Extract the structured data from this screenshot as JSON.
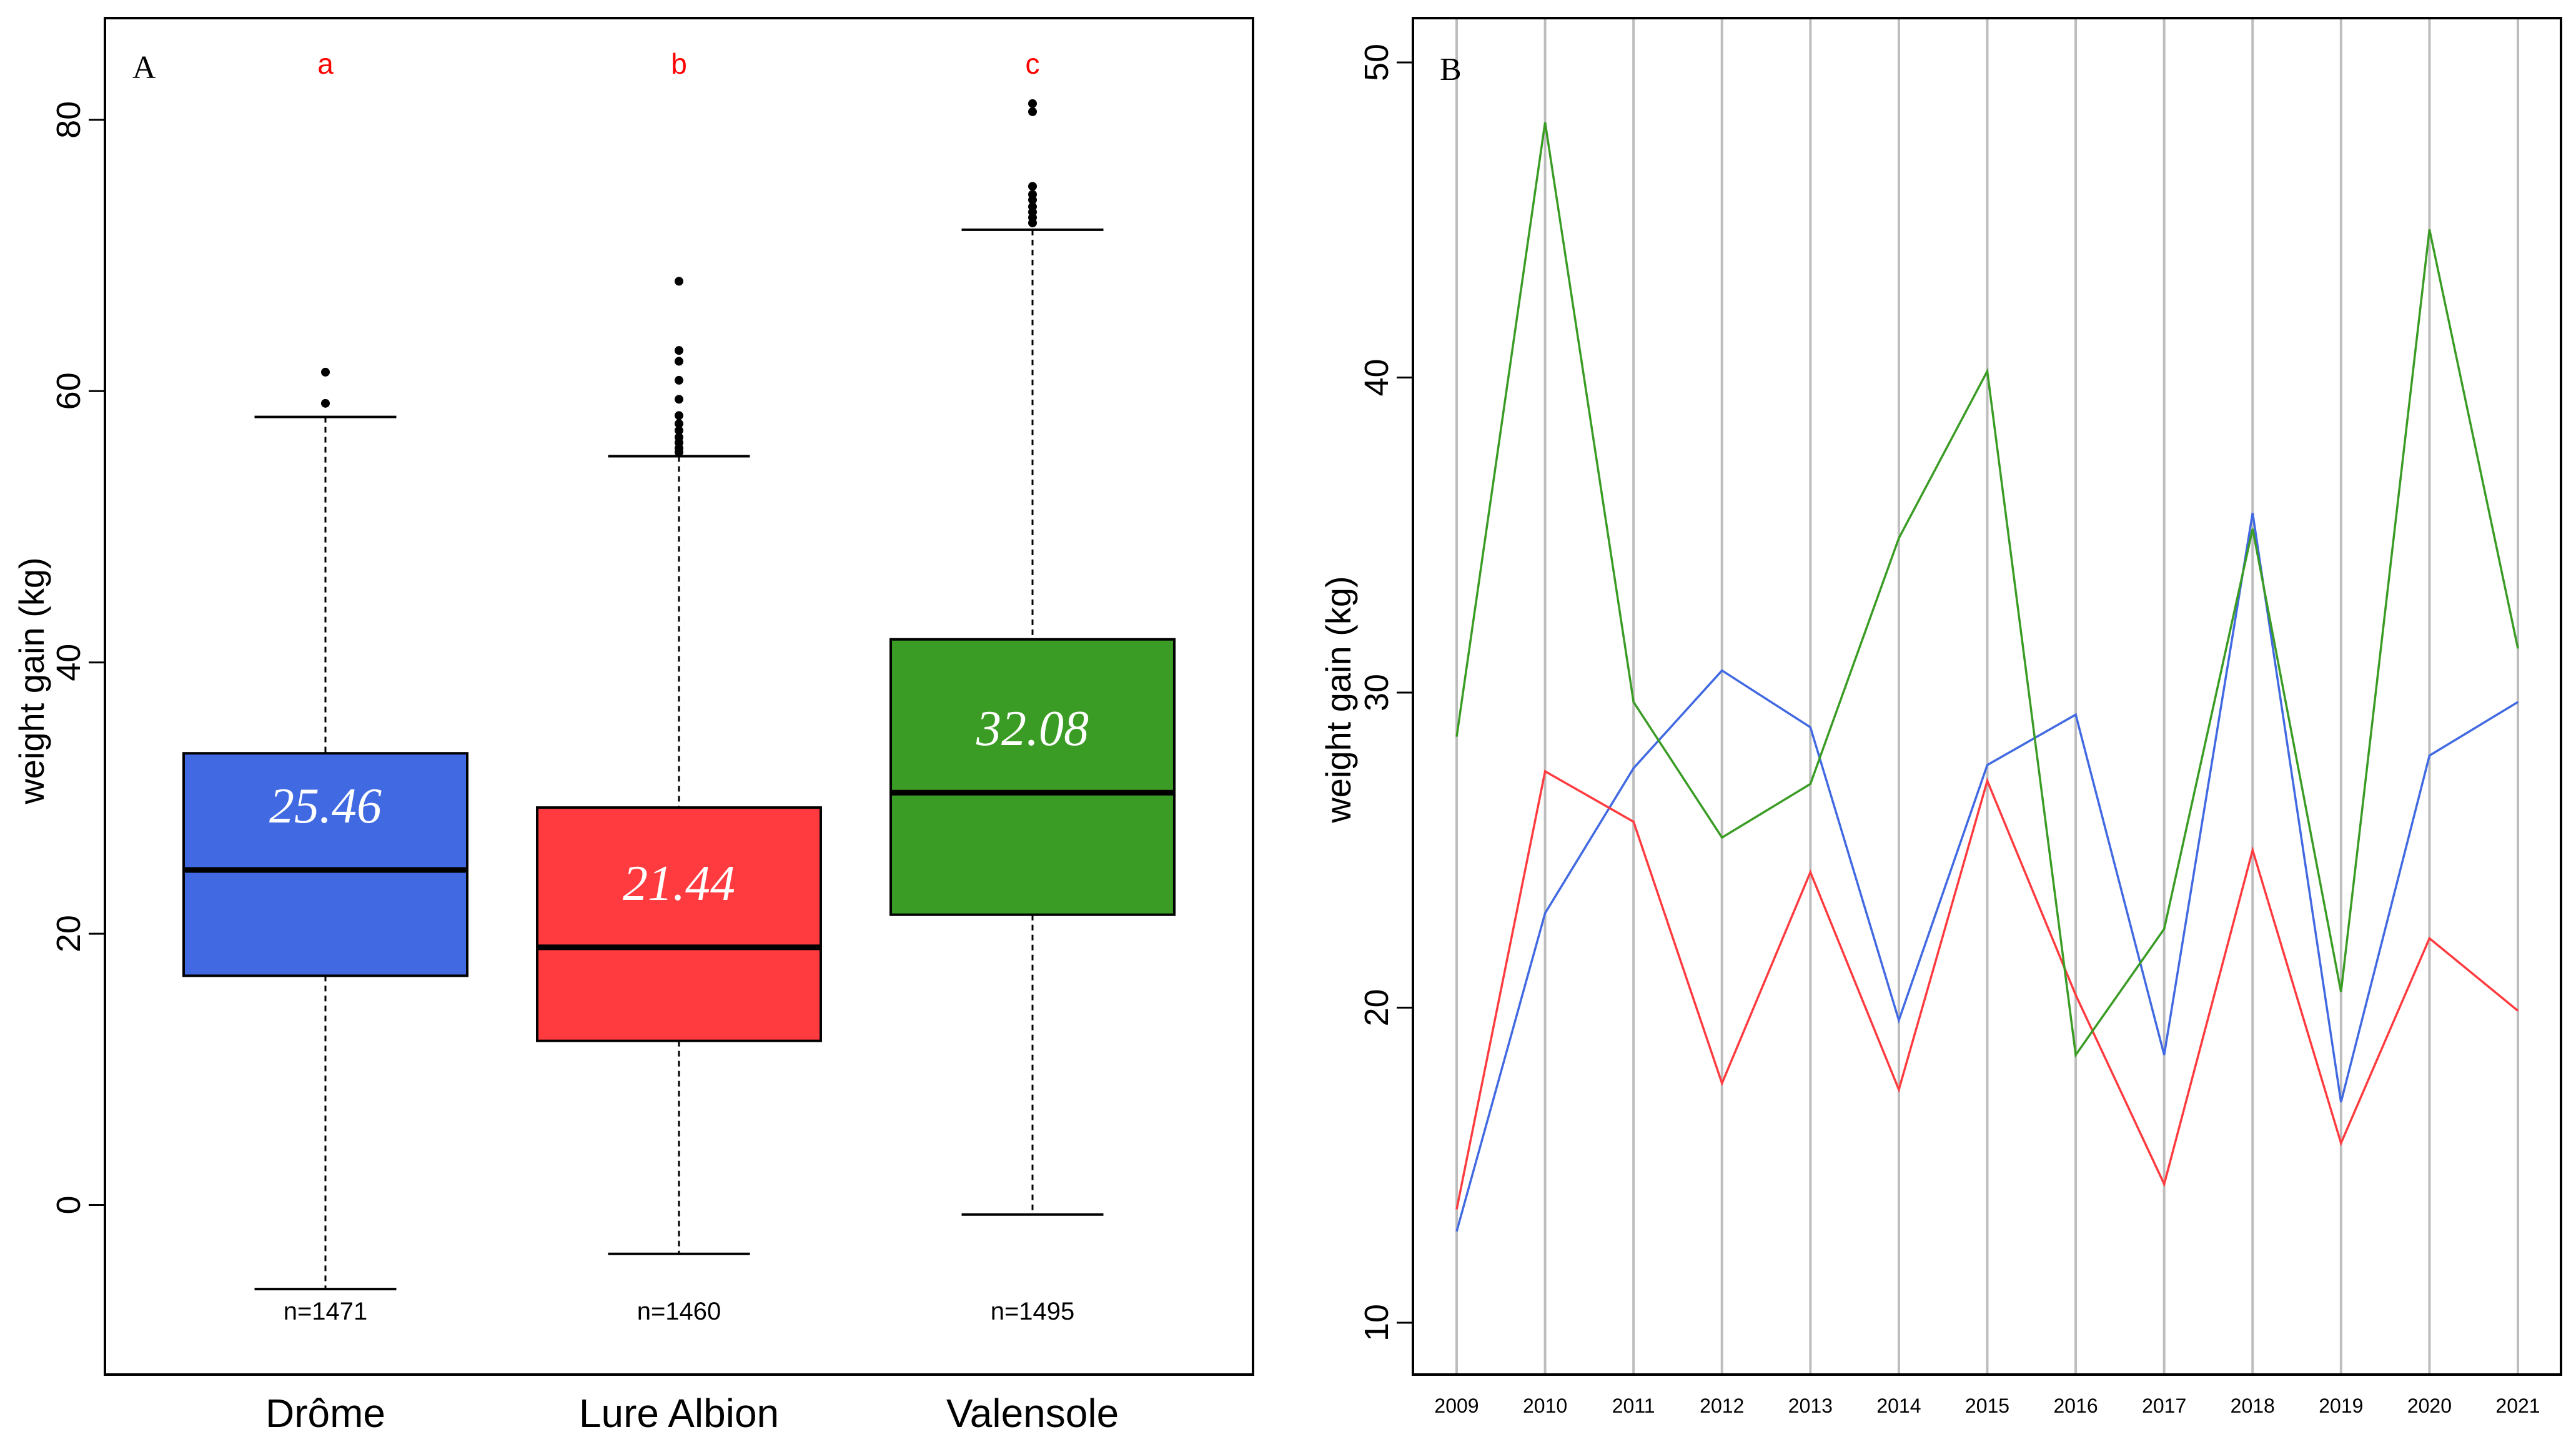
{
  "chart_data": [
    {
      "panel_label": "A",
      "type": "boxplot",
      "ylabel": "weight gain (kg)",
      "ylim": [
        -12.5,
        87.5
      ],
      "yticks": [
        0,
        20,
        40,
        60,
        80
      ],
      "categories": [
        "Drôme",
        "Lure Albion",
        "Valensole"
      ],
      "boxes": [
        {
          "name": "Drôme",
          "color": "#4169E1",
          "whisker_low": -6.2,
          "q1": 16.9,
          "median": 24.7,
          "q3": 33.3,
          "whisker_high": 58.1,
          "outliers": [
            59.1,
            61.4
          ],
          "mean_label": "25.46",
          "group_letter": "a",
          "n_label": "n=1471"
        },
        {
          "name": "Lure Albion",
          "color": "#FF3B3F",
          "whisker_low": -3.6,
          "q1": 12.1,
          "median": 19.0,
          "q3": 29.3,
          "whisker_high": 55.2,
          "outliers": [
            55.5,
            55.8,
            56.2,
            56.6,
            57.1,
            57.6,
            58.2,
            59.4,
            60.8,
            62.2,
            63.0,
            68.1
          ],
          "mean_label": "21.44",
          "group_letter": "b",
          "n_label": "n=1460"
        },
        {
          "name": "Valensole",
          "color": "#3A9C24",
          "whisker_low": -0.7,
          "q1": 21.4,
          "median": 30.4,
          "q3": 41.7,
          "whisker_high": 71.9,
          "outliers": [
            72.4,
            72.8,
            73.2,
            73.6,
            74.1,
            74.5,
            75.1,
            80.6,
            81.2
          ],
          "mean_label": "32.08",
          "group_letter": "c",
          "n_label": "n=1495"
        }
      ]
    },
    {
      "panel_label": "B",
      "type": "line",
      "ylabel": "weight gain (kg)",
      "ylim": [
        10,
        50
      ],
      "yticks": [
        10,
        20,
        30,
        40,
        50
      ],
      "x": [
        "2009",
        "2010",
        "2011",
        "2012",
        "2013",
        "2014",
        "2015",
        "2016",
        "2017",
        "2018",
        "2019",
        "2020",
        "2021"
      ],
      "grid": "vertical",
      "series": [
        {
          "name": "Drôme",
          "color": "#4169E1",
          "values": [
            12.9,
            23.0,
            27.6,
            30.7,
            28.9,
            19.6,
            27.7,
            29.3,
            18.5,
            35.7,
            17.0,
            28.0,
            29.7
          ]
        },
        {
          "name": "Lure Albion",
          "color": "#FF3B3F",
          "values": [
            13.6,
            27.5,
            25.9,
            17.6,
            24.3,
            17.4,
            27.2,
            20.4,
            14.4,
            25.0,
            15.7,
            22.2,
            19.9
          ]
        },
        {
          "name": "Valensole",
          "color": "#3A9C24",
          "values": [
            28.6,
            48.1,
            29.7,
            25.4,
            27.1,
            34.9,
            40.2,
            18.5,
            22.5,
            35.2,
            20.5,
            44.7,
            31.4
          ]
        }
      ]
    }
  ]
}
